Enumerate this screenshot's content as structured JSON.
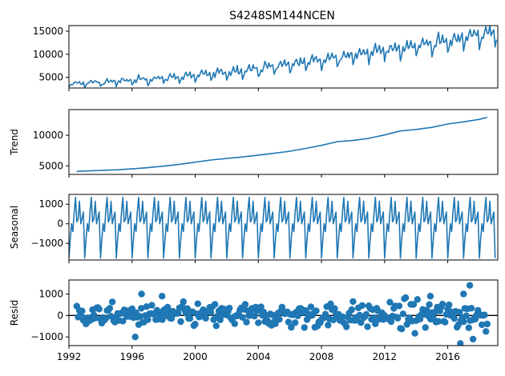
{
  "title": "S4248SM144NCEN",
  "colors": {
    "series": "#1f77b4",
    "axis": "#000000",
    "background": "#ffffff"
  },
  "chart_data": [
    {
      "type": "line",
      "panel": "observed",
      "ylabel": "",
      "xlim": [
        1992,
        2019.17
      ],
      "ylim": [
        2700,
        16200
      ],
      "yticks": [
        5000,
        10000,
        15000
      ],
      "xticks": [
        1992,
        1996,
        2000,
        2004,
        2008,
        2012,
        2016
      ],
      "show_xtick_labels": false,
      "x_start": 1992,
      "x_step": 0.0833333,
      "trend_anchors": [
        [
          1992,
          3500
        ],
        [
          1995,
          4000
        ],
        [
          2000,
          5200
        ],
        [
          2004,
          6700
        ],
        [
          2008,
          8600
        ],
        [
          2012,
          10600
        ],
        [
          2016,
          12600
        ],
        [
          2019,
          14500
        ]
      ],
      "seasonal_amplitude_base": 650,
      "seasonal_amplitude_growth": 0.085
    },
    {
      "type": "line",
      "panel": "trend",
      "ylabel": "Trend",
      "xlim": [
        1992,
        2019.17
      ],
      "ylim": [
        3600,
        14200
      ],
      "yticks": [
        5000,
        10000
      ],
      "xticks": [
        1992,
        1996,
        2000,
        2004,
        2008,
        2012,
        2016
      ],
      "show_xtick_labels": false,
      "x": [
        1992.5,
        1993,
        1994,
        1995,
        1996,
        1997,
        1998,
        1999,
        2000,
        2001,
        2002,
        2003,
        2004,
        2005,
        2006,
        2007,
        2008,
        2009,
        2010,
        2011,
        2012,
        2013,
        2014,
        2015,
        2016,
        2017,
        2018,
        2018.5
      ],
      "values": [
        4100,
        4150,
        4250,
        4350,
        4500,
        4700,
        4950,
        5250,
        5600,
        5950,
        6200,
        6450,
        6750,
        7050,
        7400,
        7850,
        8350,
        8950,
        9150,
        9500,
        10050,
        10700,
        10950,
        11300,
        11850,
        12200,
        12600,
        12950
      ]
    },
    {
      "type": "line",
      "panel": "seasonal",
      "ylabel": "Seasonal",
      "xlim": [
        1992,
        2019.17
      ],
      "ylim": [
        -1850,
        1500
      ],
      "yticks": [
        -1000,
        0,
        1000
      ],
      "xticks": [
        1992,
        1996,
        2000,
        2004,
        2008,
        2012,
        2016
      ],
      "show_xtick_labels": false,
      "x_start": 1992,
      "x_step": 0.0833333,
      "n_points": 325,
      "pattern": [
        -1750,
        -800,
        0,
        -400,
        600,
        1350,
        100,
        250,
        1150,
        0,
        300,
        600
      ]
    },
    {
      "type": "scatter",
      "panel": "resid",
      "ylabel": "Resid",
      "xlim": [
        1992,
        2019.17
      ],
      "ylim": [
        -1400,
        1650
      ],
      "yticks": [
        -1000,
        0,
        1000
      ],
      "xticks": [
        1992,
        1996,
        2000,
        2004,
        2008,
        2012,
        2016
      ],
      "xtick_labels": [
        "1992",
        "1996",
        "2000",
        "2004",
        "2008",
        "2012",
        "2016"
      ],
      "show_xtick_labels": true,
      "reference_line": 0,
      "x_start": 1992.5,
      "x_step": 0.0833333,
      "n_points": 313,
      "highlight_points": [
        [
          1996.6,
          1000
        ],
        [
          1996.2,
          -1000
        ],
        [
          1997.9,
          900
        ],
        [
          2014.9,
          900
        ],
        [
          2017.4,
          1400
        ],
        [
          2017.6,
          -1100
        ],
        [
          2016.8,
          -1300
        ],
        [
          2017.0,
          1000
        ]
      ]
    }
  ]
}
